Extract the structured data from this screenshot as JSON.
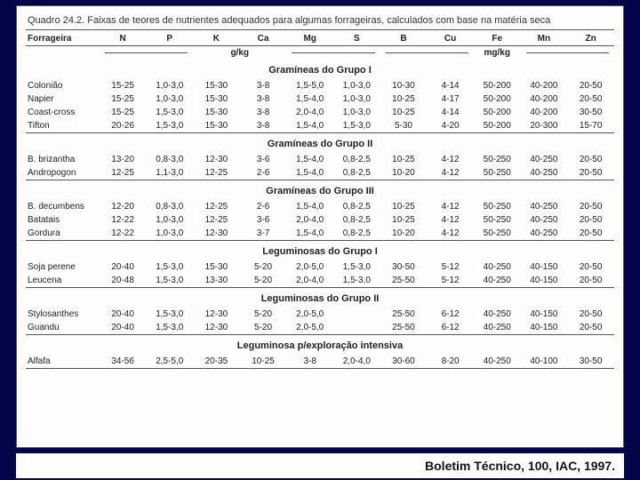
{
  "caption": "Quadro 24.2. Faixas de teores de nutrientes adequados para algumas forrageiras, calculados com base na matéria seca",
  "citation": "Boletim Técnico, 100, IAC, 1997.",
  "columns": [
    "Forrageira",
    "N",
    "P",
    "K",
    "Ca",
    "Mg",
    "S",
    "B",
    "Cu",
    "Fe",
    "Mn",
    "Zn"
  ],
  "unit_left": "g/kg",
  "unit_right": "mg/kg",
  "groups": [
    {
      "title": "Gramíneas do Grupo I",
      "rows": [
        [
          "Colonião",
          "15-25",
          "1,0-3,0",
          "15-30",
          "3-8",
          "1,5-5,0",
          "1,0-3,0",
          "10-30",
          "4-14",
          "50-200",
          "40-200",
          "20-50"
        ],
        [
          "Napier",
          "15-25",
          "1,0-3,0",
          "15-30",
          "3-8",
          "1,5-4,0",
          "1,0-3,0",
          "10-25",
          "4-17",
          "50-200",
          "40-200",
          "20-50"
        ],
        [
          "Coast-cross",
          "15-25",
          "1,5-3,0",
          "15-30",
          "3-8",
          "2,0-4,0",
          "1,0-3,0",
          "10-25",
          "4-14",
          "50-200",
          "40-200",
          "30-50"
        ],
        [
          "Tifton",
          "20-26",
          "1,5-3,0",
          "15-30",
          "3-8",
          "1,5-4,0",
          "1,5-3,0",
          "5-30",
          "4-20",
          "50-200",
          "20-300",
          "15-70"
        ]
      ]
    },
    {
      "title": "Gramíneas do Grupo II",
      "rows": [
        [
          "B. brizantha",
          "13-20",
          "0,8-3,0",
          "12-30",
          "3-6",
          "1,5-4,0",
          "0,8-2,5",
          "10-25",
          "4-12",
          "50-250",
          "40-250",
          "20-50"
        ],
        [
          "Andropogon",
          "12-25",
          "1,1-3,0",
          "12-25",
          "2-6",
          "1,5-4,0",
          "0,8-2,5",
          "10-20",
          "4-12",
          "50-250",
          "40-250",
          "20-50"
        ]
      ]
    },
    {
      "title": "Gramíneas do Grupo III",
      "rows": [
        [
          "B. decumbens",
          "12-20",
          "0,8-3,0",
          "12-25",
          "2-6",
          "1,5-4,0",
          "0,8-2,5",
          "10-25",
          "4-12",
          "50-250",
          "40-250",
          "20-50"
        ],
        [
          "Batatais",
          "12-22",
          "1,0-3,0",
          "12-25",
          "3-6",
          "2,0-4,0",
          "0,8-2,5",
          "10-25",
          "4-12",
          "50-250",
          "40-250",
          "20-50"
        ],
        [
          "Gordura",
          "12-22",
          "1,0-3,0",
          "12-30",
          "3-7",
          "1,5-4,0",
          "0,8-2,5",
          "10-20",
          "4-12",
          "50-250",
          "40-250",
          "20-50"
        ]
      ]
    },
    {
      "title": "Leguminosas do Grupo I",
      "rows": [
        [
          "Soja perene",
          "20-40",
          "1,5-3,0",
          "15-30",
          "5-20",
          "2,0-5,0",
          "1,5-3,0",
          "30-50",
          "5-12",
          "40-250",
          "40-150",
          "20-50"
        ],
        [
          "Leucena",
          "20-48",
          "1,5-3,0",
          "13-30",
          "5-20",
          "2,0-4,0",
          "1,5-3,0",
          "25-50",
          "5-12",
          "40-250",
          "40-150",
          "20-50"
        ]
      ]
    },
    {
      "title": "Leguminosas do Grupo II",
      "rows": [
        [
          "Stylosanthes",
          "20-40",
          "1,5-3,0",
          "12-30",
          "5-20",
          "2,0-5,0",
          "",
          "25-50",
          "6-12",
          "40-250",
          "40-150",
          "20-50"
        ],
        [
          "Guandu",
          "20-40",
          "1,5-3,0",
          "12-30",
          "5-20",
          "2,0-5,0",
          "",
          "25-50",
          "6-12",
          "40-250",
          "40-150",
          "20-50"
        ]
      ]
    },
    {
      "title": "Leguminosa p/exploração intensiva",
      "rows": [
        [
          "Alfafa",
          "34-56",
          "2,5-5,0",
          "20-35",
          "10-25",
          "3-8",
          "2,0-4,0",
          "30-60",
          "8-20",
          "40-250",
          "40-100",
          "30-50"
        ]
      ]
    }
  ]
}
